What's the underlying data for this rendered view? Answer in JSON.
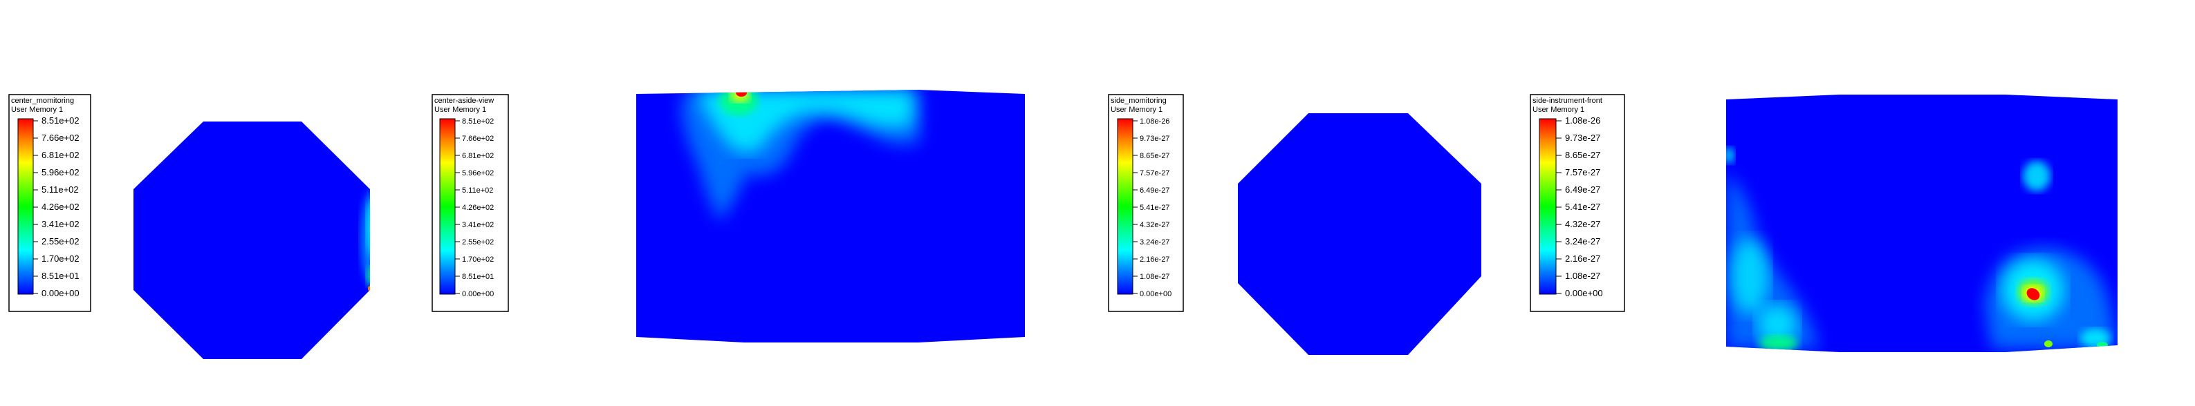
{
  "colormap": {
    "stops": [
      "#ff0000",
      "#ff8000",
      "#ffff00",
      "#80ff00",
      "#00ff00",
      "#00ff80",
      "#00ffff",
      "#0080ff",
      "#0000ff"
    ],
    "field_color": "#0000ff"
  },
  "panels": [
    {
      "legend": {
        "title": "center_momitoring",
        "subtitle": "User Memory 1",
        "ticks": [
          "8.51e+02",
          "7.66e+02",
          "6.81e+02",
          "5.96e+02",
          "5.11e+02",
          "4.26e+02",
          "3.41e+02",
          "2.55e+02",
          "1.70e+02",
          "8.51e+01",
          "0.00e+00"
        ]
      },
      "view": {
        "shape": "octagon",
        "hotspots": "right-edge"
      }
    },
    {
      "legend": {
        "title": "center-aside-view",
        "subtitle": "User Memory 1",
        "ticks": [
          "8.51e+02",
          "7.66e+02",
          "6.81e+02",
          "5.96e+02",
          "5.11e+02",
          "4.26e+02",
          "3.41e+02",
          "2.55e+02",
          "1.70e+02",
          "8.51e+01",
          "0.00e+00"
        ]
      },
      "view": {
        "shape": "box",
        "hotspots": "top-left"
      }
    },
    {
      "legend": {
        "title": "side_momitoring",
        "subtitle": "User Memory 1",
        "ticks": [
          "1.08e-26",
          "9.73e-27",
          "8.65e-27",
          "7.57e-27",
          "6.49e-27",
          "5.41e-27",
          "4.32e-27",
          "3.24e-27",
          "2.16e-27",
          "1.08e-27",
          "0.00e+00"
        ]
      },
      "view": {
        "shape": "octagon",
        "hotspots": "none"
      }
    },
    {
      "legend": {
        "title": "side-instrument-front",
        "subtitle": "User Memory 1",
        "ticks": [
          "1.08e-26",
          "9.73e-27",
          "8.65e-27",
          "7.57e-27",
          "6.49e-27",
          "5.41e-27",
          "4.32e-27",
          "3.24e-27",
          "2.16e-27",
          "1.08e-27",
          "0.00e+00"
        ]
      },
      "view": {
        "shape": "box",
        "hotspots": "bottom-corners"
      }
    }
  ]
}
